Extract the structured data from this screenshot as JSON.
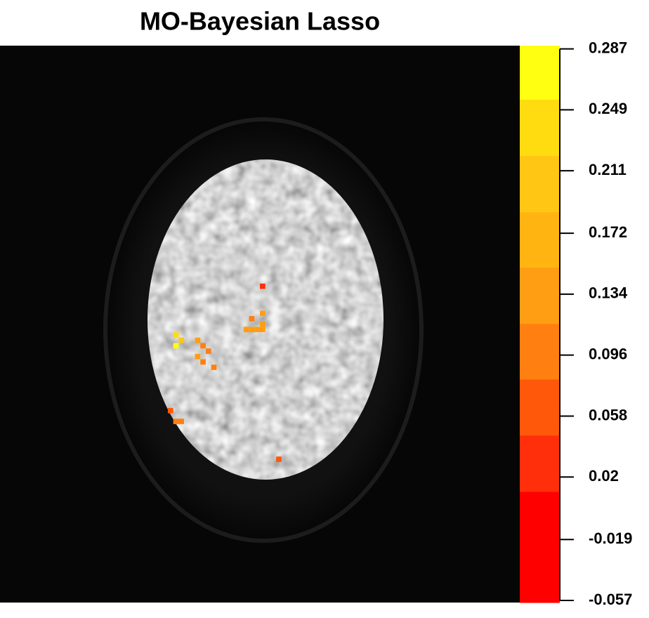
{
  "chart_data": {
    "type": "voxelmap",
    "title": "MO-Bayesian Lasso",
    "xlim": [
      0,
      96
    ],
    "ylim": [
      0,
      103
    ],
    "voxels": {
      "x": [
        48,
        45,
        46,
        47,
        48,
        48,
        48,
        46,
        32,
        32,
        33,
        36,
        37,
        38,
        36,
        37,
        39,
        31,
        32,
        33,
        51
      ],
      "y": [
        44,
        52,
        52,
        52,
        52,
        49,
        51,
        50,
        55,
        53,
        54,
        54,
        55,
        56,
        57,
        58,
        59,
        67,
        69,
        69,
        76
      ],
      "values": [
        0.04,
        0.13,
        0.14,
        0.13,
        0.12,
        0.12,
        0.13,
        0.11,
        0.28,
        0.24,
        0.22,
        0.12,
        0.11,
        0.1,
        0.13,
        0.1,
        0.11,
        0.06,
        0.1,
        0.1,
        0.05
      ]
    },
    "colorbar": {
      "breaks": [
        -0.0583,
        0.0109,
        0.046,
        0.081,
        0.1157,
        0.1507,
        0.1853,
        0.2204,
        0.2555,
        0.289
      ],
      "colors": [
        "#ff0000",
        "#fe2f0a",
        "#ff580a",
        "#ff8010",
        "#ff9e12",
        "#ffb412",
        "#ffc614",
        "#ffdc10",
        "#ffff12"
      ],
      "ticks": [
        -0.057,
        -0.019,
        0.02,
        0.058,
        0.096,
        0.134,
        0.172,
        0.211,
        0.249,
        0.287
      ]
    }
  }
}
